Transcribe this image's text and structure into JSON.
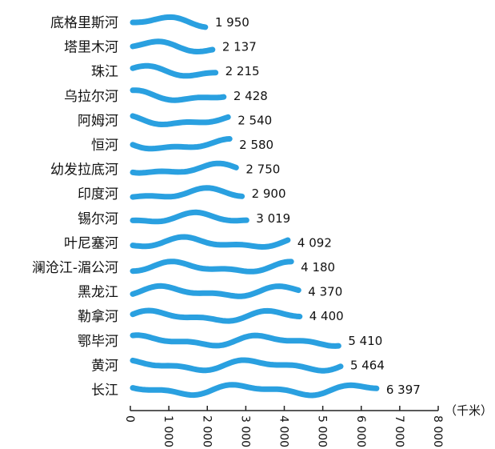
{
  "chart_data": {
    "type": "bar",
    "categories": [
      "底格里斯河",
      "塔里木河",
      "珠江",
      "乌拉尔河",
      "阿姆河",
      "恒河",
      "幼发拉底河",
      "印度河",
      "锡尔河",
      "叶尼塞河",
      "澜沧江-湄公河",
      "黑龙江",
      "勒拿河",
      "鄂毕河",
      "黄河",
      "长江"
    ],
    "values": [
      1950,
      2137,
      2215,
      2428,
      2540,
      2580,
      2750,
      2900,
      3019,
      4092,
      4180,
      4370,
      4400,
      5410,
      5464,
      6397
    ],
    "value_labels": [
      "1 950",
      "2 137",
      "2 215",
      "2 428",
      "2 540",
      "2 580",
      "2 750",
      "2 900",
      "3 019",
      "4 092",
      "4 180",
      "4 370",
      "4 400",
      "5 410",
      "5 464",
      "6 397"
    ],
    "xticks": [
      "0",
      "1 000",
      "2 000",
      "3 000",
      "4 000",
      "5 000",
      "6 000",
      "7 000",
      "8 000"
    ],
    "xlim": [
      0,
      8000
    ],
    "unit_label": "（千米）",
    "bar_color": "#2aa0e0",
    "bar_style": "wavy river line"
  }
}
